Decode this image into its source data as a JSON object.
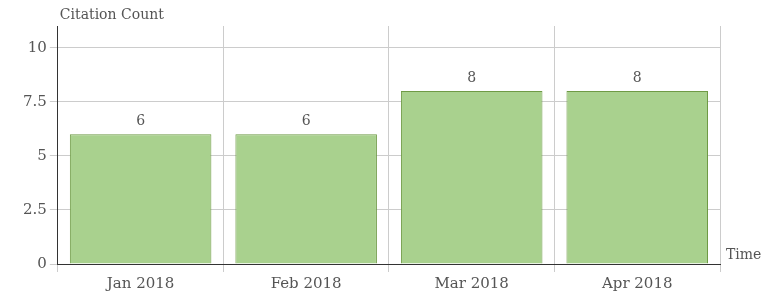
{
  "chart_data": {
    "type": "bar",
    "x_label": "Time",
    "y_label": "Citation Count",
    "categories": [
      "Jan 2018",
      "Feb 2018",
      "Mar 2018",
      "Apr 2018"
    ],
    "values": [
      6,
      6,
      8,
      8
    ],
    "color": "#a9d18e",
    "ylim": [
      0,
      11
    ],
    "yticks": [
      0,
      2.5,
      5,
      7.5,
      10
    ],
    "grid": true,
    "data_labels": true
  }
}
